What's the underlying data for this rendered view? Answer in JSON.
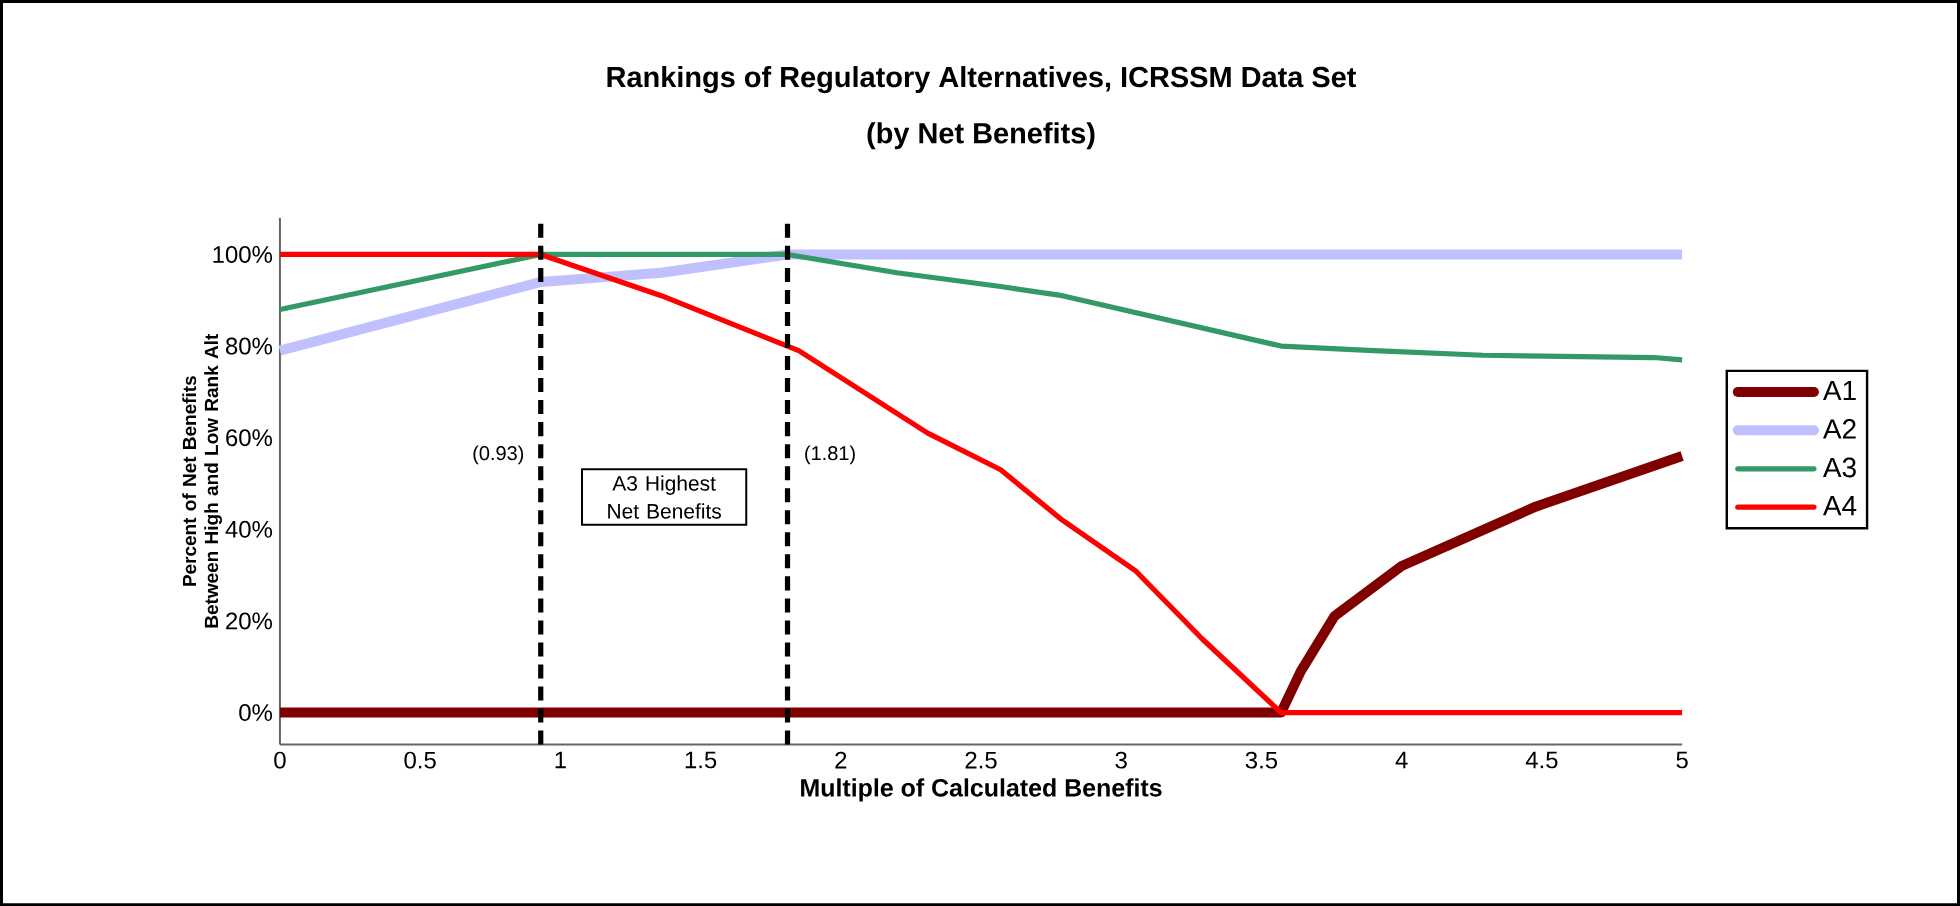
{
  "chart_data": {
    "type": "line",
    "title": "Rankings of Regulatory Alternatives, ICRSSM Data Set",
    "subtitle": "(by Net Benefits)",
    "xlabel": "Multiple of Calculated Benefits",
    "ylabel": "Percent of Net Benefits Between High and Low Rank Alt",
    "xlim": [
      0,
      5
    ],
    "ylim": [
      -7,
      108
    ],
    "xticks": [
      0,
      0.5,
      1,
      1.5,
      2,
      2.5,
      3,
      3.5,
      4,
      4.5,
      5
    ],
    "yticks": [
      {
        "value": 0,
        "label": "0%"
      },
      {
        "value": 20,
        "label": "20%"
      },
      {
        "value": 40,
        "label": "40%"
      },
      {
        "value": 60,
        "label": "60%"
      },
      {
        "value": 80,
        "label": "80%"
      },
      {
        "value": 100,
        "label": "100%"
      }
    ],
    "series": [
      {
        "name": "A1",
        "color": "#800000",
        "x": [
          0,
          3.57,
          3.64,
          3.76,
          4.0,
          4.48,
          5
        ],
        "values": [
          0,
          0,
          9,
          21,
          32,
          45,
          56
        ]
      },
      {
        "name": "A2",
        "color": "#c0c0ff",
        "x": [
          0,
          0.93,
          1.36,
          1.81,
          5
        ],
        "values": [
          79,
          94,
          96,
          100,
          100
        ]
      },
      {
        "name": "A3",
        "color": "#339966",
        "x": [
          0,
          0.93,
          1.81,
          2.2,
          2.57,
          2.79,
          3.57,
          3.9,
          4.29,
          4.9,
          5
        ],
        "values": [
          88,
          100,
          100,
          96,
          93,
          91,
          80,
          79,
          78,
          77.5,
          77
        ]
      },
      {
        "name": "A4",
        "color": "#ff0000",
        "x": [
          0,
          0.93,
          1.36,
          1.85,
          2.31,
          2.57,
          2.79,
          3.05,
          3.29,
          3.57,
          5
        ],
        "values": [
          100,
          100,
          91,
          79,
          61,
          53,
          42,
          31,
          16,
          0,
          0
        ]
      }
    ],
    "ref_lines": [
      {
        "axis": "x",
        "value": 0.93,
        "label": "(0.93)",
        "color": "#000000",
        "line_style": "dashed"
      },
      {
        "axis": "x",
        "value": 1.81,
        "label": "(1.81)",
        "color": "#000000",
        "line_style": "dashed"
      }
    ],
    "annotations": [
      "A3 Highest Net Benefits"
    ],
    "legend": "right",
    "marker": "none",
    "line_style": "solid",
    "grid": false
  }
}
